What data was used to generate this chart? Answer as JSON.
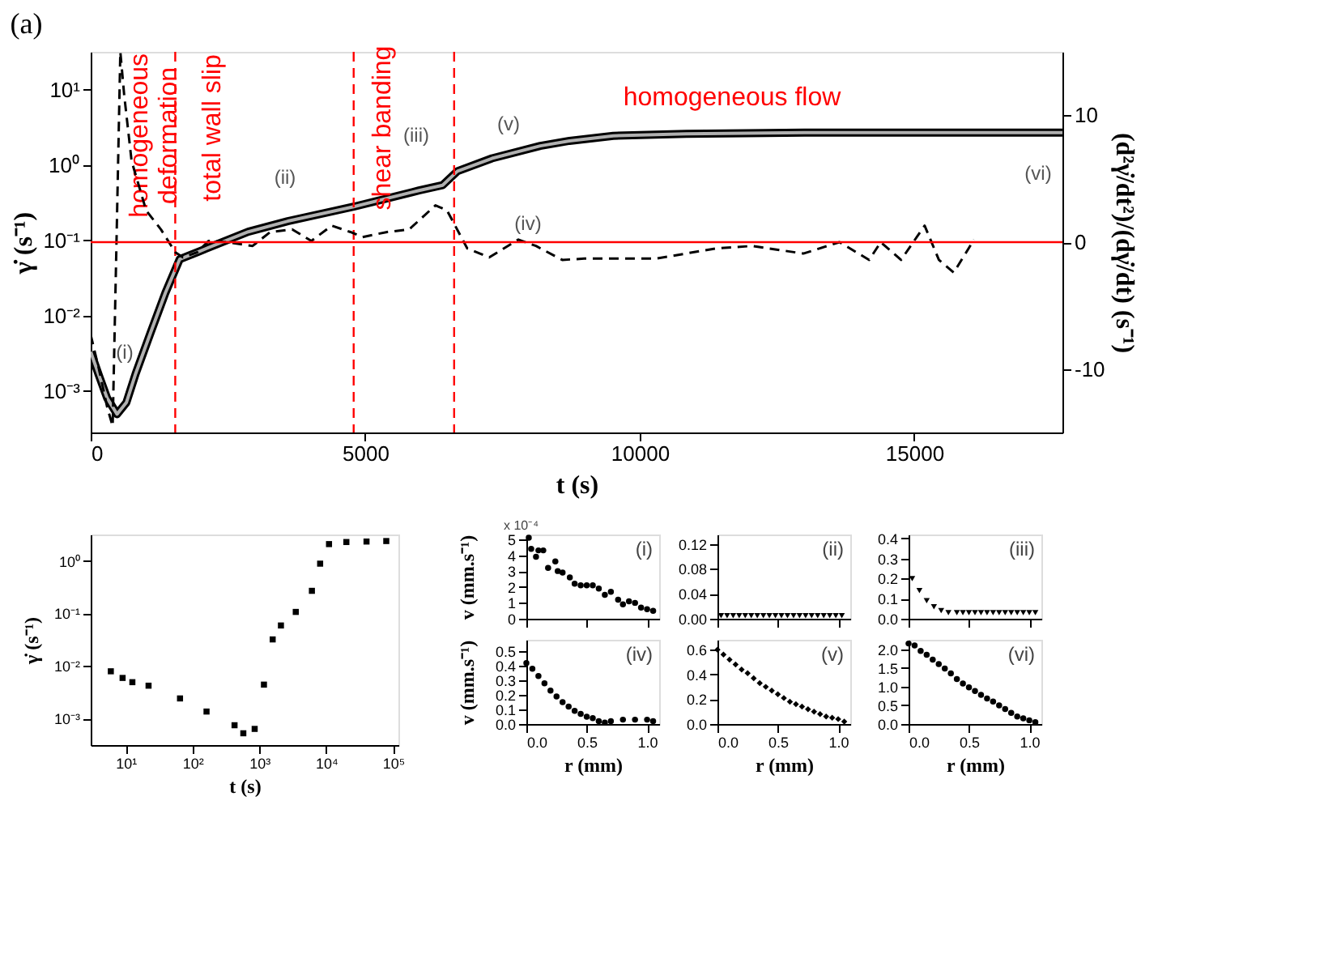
{
  "chart_data": [
    {
      "type": "line",
      "title": "(a)",
      "xlabel": "t (s)",
      "ylabel": "γ̇ (s⁻¹)",
      "y2label": "(d²γ̇/dt²)/(dγ̇/dt) (s⁻¹)",
      "log": "y",
      "xlim": [
        0,
        17700
      ],
      "xticks": [
        0,
        5000,
        10000,
        15000
      ],
      "ylim": [
        0.00028,
        32
      ],
      "yticks": [
        {
          "value": 0.001,
          "label": "10⁻³"
        },
        {
          "value": 0.01,
          "label": "10⁻²"
        },
        {
          "value": 0.1,
          "label": "10⁻¹"
        },
        {
          "value": 1,
          "label": "10⁰"
        },
        {
          "value": 10,
          "label": "10¹"
        }
      ],
      "y2lim": [
        -15,
        15
      ],
      "y2ticks": [
        -10,
        0,
        10
      ],
      "series": [
        {
          "color": "#000000",
          "x": [
            0,
            150,
            300,
            480,
            650,
            820,
            1090,
            1360,
            1620,
            1990,
            2870,
            3590,
            4790,
            5980,
            6410,
            6680,
            7310,
            8190,
            8720,
            9520,
            10850,
            13000,
            17700
          ],
          "values": [
            0.0033,
            0.0016,
            0.0008,
            0.00049,
            0.0007,
            0.0017,
            0.0059,
            0.02,
            0.056,
            0.072,
            0.13,
            0.18,
            0.28,
            0.46,
            0.54,
            0.83,
            1.23,
            1.8,
            2.1,
            2.45,
            2.6,
            2.7,
            2.7
          ]
        },
        {
          "color": "#b0b0b0",
          "x": [
            0,
            150,
            300,
            480,
            650,
            820,
            1090,
            1360,
            1620,
            1990,
            2870,
            3590,
            4790,
            5980,
            6410,
            6680,
            7310,
            8190,
            8720,
            9520,
            10850,
            13000,
            17700
          ],
          "values": [
            0.0033,
            0.0016,
            0.0008,
            0.00049,
            0.0007,
            0.0017,
            0.0059,
            0.02,
            0.056,
            0.072,
            0.13,
            0.18,
            0.28,
            0.46,
            0.54,
            0.83,
            1.23,
            1.8,
            2.1,
            2.45,
            2.6,
            2.7,
            2.7
          ]
        },
        {
          "color": "#000000",
          "axis": "y2",
          "line_style": "dashed",
          "x": [
            0,
            150,
            300,
            400,
            470,
            540,
            610,
            745,
            1010,
            1280,
            1540,
            1680,
            1940,
            2150,
            2470,
            2950,
            3270,
            3670,
            4020,
            4390,
            4730,
            4950,
            5400,
            5800,
            6280,
            6490,
            6860,
            7260,
            7790,
            8110,
            8590,
            8990,
            10300,
            11380,
            12050,
            12980,
            13640,
            14180,
            14390,
            14760,
            15190,
            15450,
            15720,
            16090
          ],
          "values": [
            -7.3,
            -10,
            -13,
            -14.5,
            0,
            15,
            11.6,
            6.4,
            2.5,
            1.0,
            -0.8,
            -1.2,
            -0.8,
            0.1,
            0,
            -0.3,
            0.8,
            1.0,
            0.1,
            1.3,
            0.8,
            0.4,
            0.8,
            1.0,
            2.9,
            2.5,
            -0.5,
            -1.2,
            0.2,
            -0.3,
            -1.4,
            -1.3,
            -1.3,
            -0.5,
            -0.3,
            -0.9,
            0,
            -1.4,
            0,
            -1.4,
            1.3,
            -1.4,
            -2.4,
            0.2
          ]
        }
      ],
      "ref_lines": [
        {
          "axis": "x",
          "value": 1540,
          "color": "#ff0000",
          "line_style": "dashed"
        },
        {
          "axis": "x",
          "value": 4790,
          "color": "#ff0000",
          "line_style": "dashed"
        },
        {
          "axis": "x",
          "value": 6620,
          "color": "#ff0000",
          "line_style": "dashed"
        },
        {
          "axis": "y2",
          "value": 0,
          "color": "#ff0000",
          "line_style": "solid"
        }
      ],
      "annotations": [
        "homogeneous\ndeformation",
        "total wall slip",
        "shear banding",
        "homogeneous flow",
        "(i)",
        "(ii)",
        "(iii)",
        "(iv)",
        "(v)",
        "(vi)"
      ]
    },
    {
      "type": "scatter",
      "xlabel": "t (s)",
      "ylabel": "γ̇ (s⁻¹)",
      "log": "xy",
      "marker": "square",
      "color": "#000000",
      "xlim": [
        3,
        120000
      ],
      "xticks": [
        {
          "value": 10,
          "label": "10¹"
        },
        {
          "value": 100,
          "label": "10²"
        },
        {
          "value": 1000,
          "label": "10³"
        },
        {
          "value": 10000,
          "label": "10⁴"
        },
        {
          "value": 100000,
          "label": "10⁵"
        }
      ],
      "ylim": [
        0.00031,
        3.2
      ],
      "yticks": [
        {
          "value": 0.001,
          "label": "10⁻³"
        },
        {
          "value": 0.01,
          "label": "10⁻²"
        },
        {
          "value": 0.1,
          "label": "10⁻¹"
        },
        {
          "value": 1,
          "label": "10⁰"
        }
      ],
      "x": [
        6,
        9,
        12.6,
        22,
        65,
        162,
        425,
        575,
        850,
        1170,
        1580,
        2100,
        3500,
        6100,
        8100,
        11000,
        20000,
        40000,
        79000
      ],
      "values": [
        0.0079,
        0.0059,
        0.0049,
        0.0042,
        0.0024,
        0.00135,
        0.00074,
        0.00052,
        0.00063,
        0.0044,
        0.032,
        0.059,
        0.107,
        0.27,
        0.89,
        2.1,
        2.3,
        2.35,
        2.4
      ]
    },
    {
      "type": "scatter",
      "ylabel": "v (mm.s⁻¹)",
      "marker": "circle",
      "color": "#000000",
      "tick_labels": "y",
      "annotations": [
        "(i)",
        "x 10⁻⁴"
      ],
      "xlim": [
        0,
        1.1
      ],
      "xticks": [
        0,
        0.5,
        1
      ],
      "ylim": [
        0,
        5.3
      ],
      "yticks": [
        0,
        1,
        2,
        3,
        4,
        5
      ],
      "x": [
        0.02,
        0.04,
        0.08,
        0.1,
        0.14,
        0.18,
        0.24,
        0.26,
        0.3,
        0.36,
        0.4,
        0.45,
        0.5,
        0.55,
        0.6,
        0.65,
        0.7,
        0.76,
        0.8,
        0.85,
        0.9,
        0.95,
        1.0,
        1.05
      ],
      "values": [
        5.1,
        4.4,
        3.9,
        4.3,
        4.3,
        3.2,
        3.6,
        3.0,
        2.9,
        2.6,
        2.2,
        2.1,
        2.1,
        2.1,
        1.9,
        1.5,
        1.7,
        1.2,
        0.9,
        1.1,
        1.0,
        0.7,
        0.6,
        0.5
      ]
    },
    {
      "type": "scatter",
      "marker": "triangle",
      "color": "#000000",
      "tick_labels": "y",
      "annotations": [
        "(ii)"
      ],
      "xlim": [
        0,
        1.1
      ],
      "xticks": [
        0,
        0.5,
        1
      ],
      "ylim": [
        0,
        0.135
      ],
      "yticks": [
        {
          "value": 0,
          "label": "0.00"
        },
        {
          "value": 0.04,
          "label": "0.04"
        },
        {
          "value": 0.08,
          "label": "0.08"
        },
        {
          "value": 0.12,
          "label": "0.12"
        }
      ],
      "x": [
        0.03,
        0.08,
        0.13,
        0.18,
        0.23,
        0.28,
        0.33,
        0.38,
        0.43,
        0.48,
        0.53,
        0.58,
        0.63,
        0.68,
        0.73,
        0.78,
        0.83,
        0.88,
        0.93,
        0.98,
        1.03
      ],
      "values": [
        0.005,
        0.005,
        0.005,
        0.005,
        0.005,
        0.005,
        0.005,
        0.005,
        0.005,
        0.005,
        0.005,
        0.005,
        0.005,
        0.005,
        0.005,
        0.005,
        0.005,
        0.005,
        0.005,
        0.005,
        0.005
      ]
    },
    {
      "type": "scatter",
      "marker": "triangle",
      "color": "#000000",
      "tick_labels": "y",
      "annotations": [
        "(iii)"
      ],
      "xlim": [
        0,
        1.1
      ],
      "xticks": [
        0,
        0.5,
        1
      ],
      "ylim": [
        0,
        0.42
      ],
      "yticks": [
        {
          "value": 0,
          "label": "0.0"
        },
        {
          "value": 0.1,
          "label": "0.1"
        },
        {
          "value": 0.2,
          "label": "0.2"
        },
        {
          "value": 0.3,
          "label": "0.3"
        },
        {
          "value": 0.4,
          "label": "0.4"
        }
      ],
      "x": [
        0.03,
        0.09,
        0.15,
        0.21,
        0.27,
        0.33,
        0.4,
        0.45,
        0.5,
        0.55,
        0.6,
        0.65,
        0.7,
        0.75,
        0.8,
        0.85,
        0.9,
        0.95,
        1.0,
        1.05
      ],
      "values": [
        0.2,
        0.14,
        0.09,
        0.06,
        0.04,
        0.03,
        0.03,
        0.03,
        0.03,
        0.03,
        0.03,
        0.03,
        0.03,
        0.03,
        0.03,
        0.03,
        0.03,
        0.03,
        0.03,
        0.03
      ]
    },
    {
      "type": "scatter",
      "xlabel": "r (mm)",
      "ylabel": "v (mm.s⁻¹)",
      "marker": "circle",
      "color": "#000000",
      "annotations": [
        "(iv)"
      ],
      "xlim": [
        0,
        1.1
      ],
      "xticks": [
        {
          "value": 0,
          "label": "0.0"
        },
        {
          "value": 0.5,
          "label": "0.5"
        },
        {
          "value": 1,
          "label": "1.0"
        }
      ],
      "ylim": [
        0,
        0.58
      ],
      "yticks": [
        {
          "value": 0,
          "label": "0.0"
        },
        {
          "value": 0.1,
          "label": "0.1"
        },
        {
          "value": 0.2,
          "label": "0.2"
        },
        {
          "value": 0.3,
          "label": "0.3"
        },
        {
          "value": 0.4,
          "label": "0.4"
        },
        {
          "value": 0.5,
          "label": "0.5"
        }
      ],
      "x": [
        0,
        0.05,
        0.1,
        0.15,
        0.2,
        0.25,
        0.3,
        0.35,
        0.4,
        0.45,
        0.5,
        0.55,
        0.6,
        0.65,
        0.7,
        0.8,
        0.9,
        1.0,
        1.05
      ],
      "values": [
        0.42,
        0.38,
        0.33,
        0.28,
        0.23,
        0.19,
        0.15,
        0.12,
        0.09,
        0.07,
        0.05,
        0.04,
        0.02,
        0.01,
        0.02,
        0.03,
        0.03,
        0.03,
        0.02
      ]
    },
    {
      "type": "scatter",
      "xlabel": "r (mm)",
      "marker": "diamond",
      "color": "#000000",
      "annotations": [
        "(v)"
      ],
      "xlim": [
        0,
        1.1
      ],
      "xticks": [
        {
          "value": 0,
          "label": "0.0"
        },
        {
          "value": 0.5,
          "label": "0.5"
        },
        {
          "value": 1,
          "label": "1.0"
        }
      ],
      "ylim": [
        0,
        0.68
      ],
      "yticks": [
        {
          "value": 0,
          "label": "0.0"
        },
        {
          "value": 0.2,
          "label": "0.2"
        },
        {
          "value": 0.4,
          "label": "0.4"
        },
        {
          "value": 0.6,
          "label": "0.6"
        }
      ],
      "x": [
        0,
        0.05,
        0.1,
        0.15,
        0.2,
        0.25,
        0.3,
        0.35,
        0.4,
        0.45,
        0.5,
        0.55,
        0.6,
        0.65,
        0.7,
        0.75,
        0.8,
        0.85,
        0.9,
        0.95,
        1.0,
        1.05
      ],
      "values": [
        0.6,
        0.56,
        0.52,
        0.48,
        0.44,
        0.41,
        0.37,
        0.33,
        0.3,
        0.27,
        0.24,
        0.21,
        0.18,
        0.16,
        0.14,
        0.12,
        0.1,
        0.08,
        0.06,
        0.05,
        0.04,
        0.02
      ]
    },
    {
      "type": "scatter",
      "xlabel": "r (mm)",
      "marker": "circle",
      "color": "#000000",
      "annotations": [
        "(vi)"
      ],
      "xlim": [
        0,
        1.1
      ],
      "xticks": [
        {
          "value": 0,
          "label": "0.0"
        },
        {
          "value": 0.5,
          "label": "0.5"
        },
        {
          "value": 1,
          "label": "1.0"
        }
      ],
      "ylim": [
        0,
        2.25
      ],
      "yticks": [
        {
          "value": 0,
          "label": "0.0"
        },
        {
          "value": 0.5,
          "label": "0.5"
        },
        {
          "value": 1,
          "label": "1.0"
        },
        {
          "value": 1.5,
          "label": "1.5"
        },
        {
          "value": 2,
          "label": "2.0"
        }
      ],
      "x": [
        0,
        0.05,
        0.1,
        0.15,
        0.2,
        0.25,
        0.3,
        0.35,
        0.4,
        0.45,
        0.5,
        0.55,
        0.6,
        0.65,
        0.7,
        0.75,
        0.8,
        0.85,
        0.9,
        0.95,
        1.0,
        1.05
      ],
      "values": [
        2.15,
        2.1,
        1.95,
        1.85,
        1.72,
        1.6,
        1.48,
        1.35,
        1.2,
        1.08,
        0.98,
        0.88,
        0.78,
        0.68,
        0.6,
        0.5,
        0.4,
        0.3,
        0.2,
        0.15,
        0.1,
        0.05
      ]
    }
  ]
}
